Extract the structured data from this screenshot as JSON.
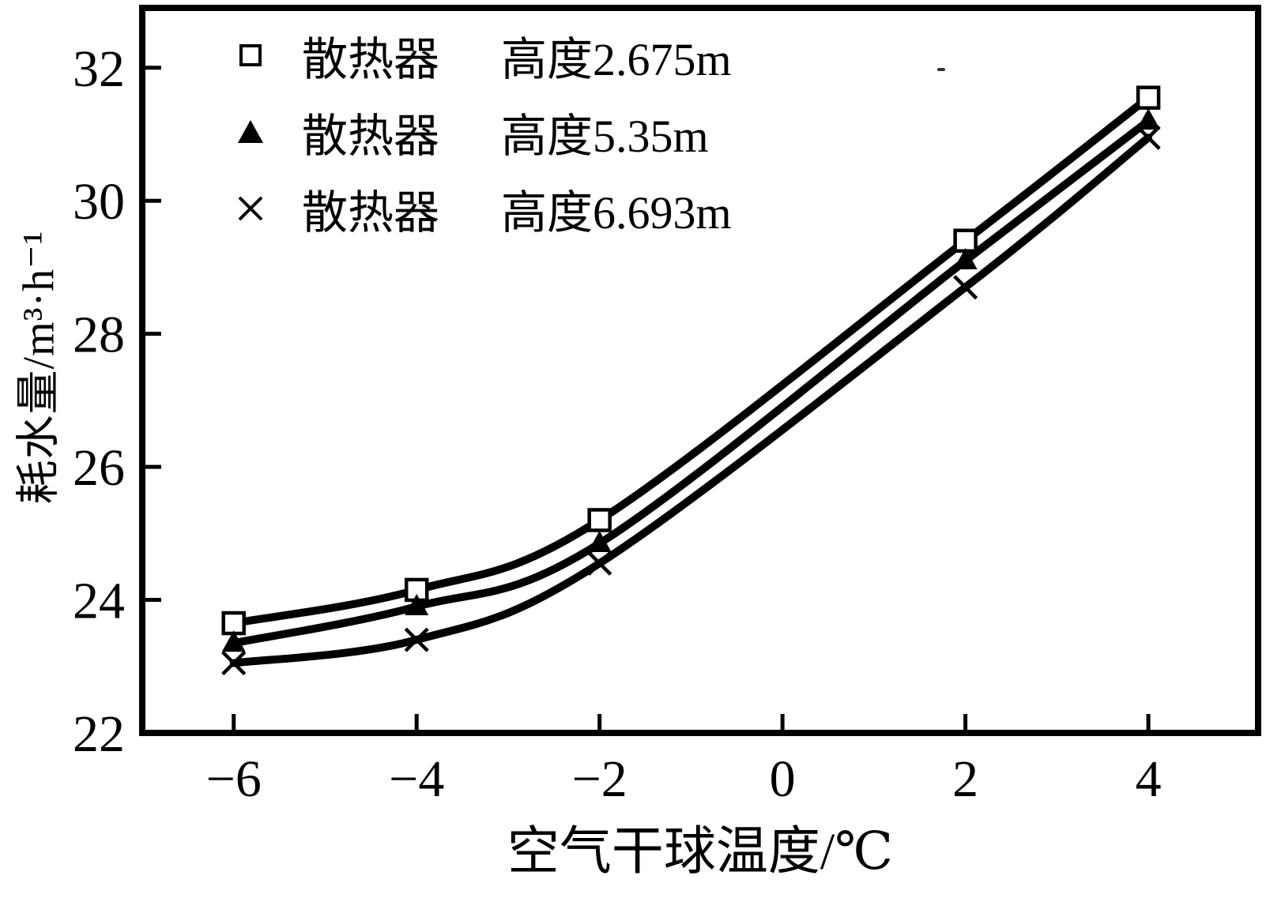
{
  "figure": {
    "background": "#ffffff",
    "frame_color": "#000000"
  },
  "chart_data": {
    "type": "line",
    "title": "",
    "xlabel": "空气干球温度/℃",
    "ylabel": "耗水量/m³·h⁻¹",
    "x": [
      -6,
      -4,
      -2,
      2,
      4
    ],
    "xlim": [
      -7,
      5.2
    ],
    "ylim": [
      22,
      32.9
    ],
    "x_ticks": [
      -6,
      -4,
      -2,
      0,
      2,
      4
    ],
    "x_tick_labels": [
      "−6",
      "−4",
      "−2",
      "0",
      "2",
      "4"
    ],
    "y_ticks": [
      22,
      24,
      26,
      28,
      30,
      32
    ],
    "y_tick_labels": [
      "22",
      "24",
      "26",
      "28",
      "30",
      "32"
    ],
    "grid": false,
    "legend_position": "top-left-inside",
    "line_color": "#000000",
    "series": [
      {
        "name": "散热器",
        "height_label": "高度2.675m",
        "marker": "square",
        "values": [
          23.65,
          24.15,
          25.2,
          29.4,
          31.55
        ]
      },
      {
        "name": "散热器",
        "height_label": "高度5.35m",
        "marker": "triangle",
        "values": [
          23.35,
          23.9,
          24.85,
          29.1,
          31.2
        ]
      },
      {
        "name": "散热器",
        "height_label": "高度6.693m",
        "marker": "x",
        "values": [
          23.05,
          23.4,
          24.55,
          28.7,
          30.95
        ]
      }
    ]
  }
}
